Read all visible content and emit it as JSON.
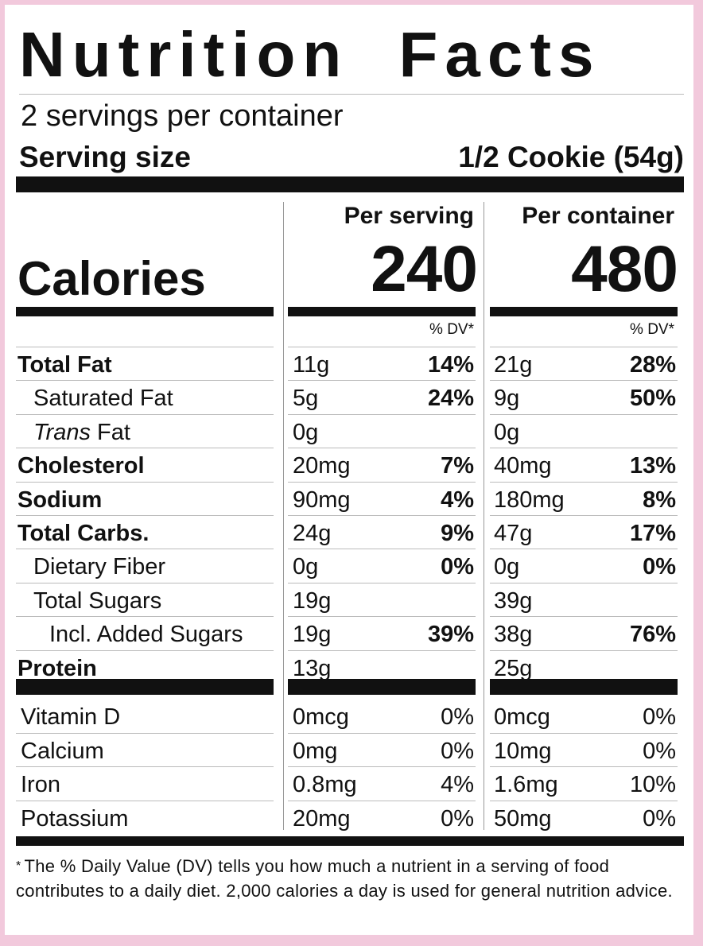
{
  "title": "Nutrition Facts",
  "servings_per_container": "2 servings per container",
  "serving_size_label": "Serving size",
  "serving_size_value": "1/2 Cookie (54g)",
  "calories_label": "Calories",
  "columns": [
    {
      "heading": "Per serving",
      "calories": "240",
      "dv_heading": "% DV*"
    },
    {
      "heading": "Per container",
      "calories": "480",
      "dv_heading": "% DV*"
    }
  ],
  "nutrients": [
    {
      "name": "Total Fat",
      "bold": true,
      "indent": 0,
      "serving_amount": "11g",
      "serving_dv": "14%",
      "container_amount": "21g",
      "container_dv": "28%"
    },
    {
      "name": "Saturated Fat",
      "bold": false,
      "indent": 1,
      "serving_amount": "5g",
      "serving_dv": "24%",
      "container_amount": "9g",
      "container_dv": "50%"
    },
    {
      "name_italic": "Trans",
      "name": " Fat",
      "bold": false,
      "indent": 1,
      "serving_amount": "0g",
      "serving_dv": "",
      "container_amount": "0g",
      "container_dv": ""
    },
    {
      "name": "Cholesterol",
      "bold": true,
      "indent": 0,
      "serving_amount": "20mg",
      "serving_dv": "7%",
      "container_amount": "40mg",
      "container_dv": "13%"
    },
    {
      "name": "Sodium",
      "bold": true,
      "indent": 0,
      "serving_amount": "90mg",
      "serving_dv": "4%",
      "container_amount": "180mg",
      "container_dv": "8%"
    },
    {
      "name": "Total Carbs.",
      "bold": true,
      "indent": 0,
      "serving_amount": "24g",
      "serving_dv": "9%",
      "container_amount": "47g",
      "container_dv": "17%"
    },
    {
      "name": "Dietary Fiber",
      "bold": false,
      "indent": 1,
      "serving_amount": "0g",
      "serving_dv": "0%",
      "container_amount": "0g",
      "container_dv": "0%"
    },
    {
      "name": "Total Sugars",
      "bold": false,
      "indent": 1,
      "serving_amount": "19g",
      "serving_dv": "",
      "container_amount": "39g",
      "container_dv": ""
    },
    {
      "name": "Incl. Added Sugars",
      "bold": false,
      "indent": 2,
      "serving_amount": "19g",
      "serving_dv": "39%",
      "container_amount": "38g",
      "container_dv": "76%"
    },
    {
      "name": "Protein",
      "bold": true,
      "indent": 0,
      "serving_amount": "13g",
      "serving_dv": "",
      "container_amount": "25g",
      "container_dv": ""
    }
  ],
  "vitamins": [
    {
      "name": "Vitamin D",
      "serving_amount": "0mcg",
      "serving_dv": "0%",
      "container_amount": "0mcg",
      "container_dv": "0%"
    },
    {
      "name": "Calcium",
      "serving_amount": "0mg",
      "serving_dv": "0%",
      "container_amount": "10mg",
      "container_dv": "0%"
    },
    {
      "name": "Iron",
      "serving_amount": "0.8mg",
      "serving_dv": "4%",
      "container_amount": "1.6mg",
      "container_dv": "10%"
    },
    {
      "name": "Potassium",
      "serving_amount": "20mg",
      "serving_dv": "0%",
      "container_amount": "50mg",
      "container_dv": "0%"
    }
  ],
  "footnote_star": "*",
  "footnote": "The % Daily Value (DV) tells you how much a nutrient in a serving of food contributes to a daily diet. 2,000 calories a day is used for general nutrition advice.",
  "colors": {
    "background": "#f2c9dc",
    "label": "#ffffff",
    "ink": "#111111"
  }
}
